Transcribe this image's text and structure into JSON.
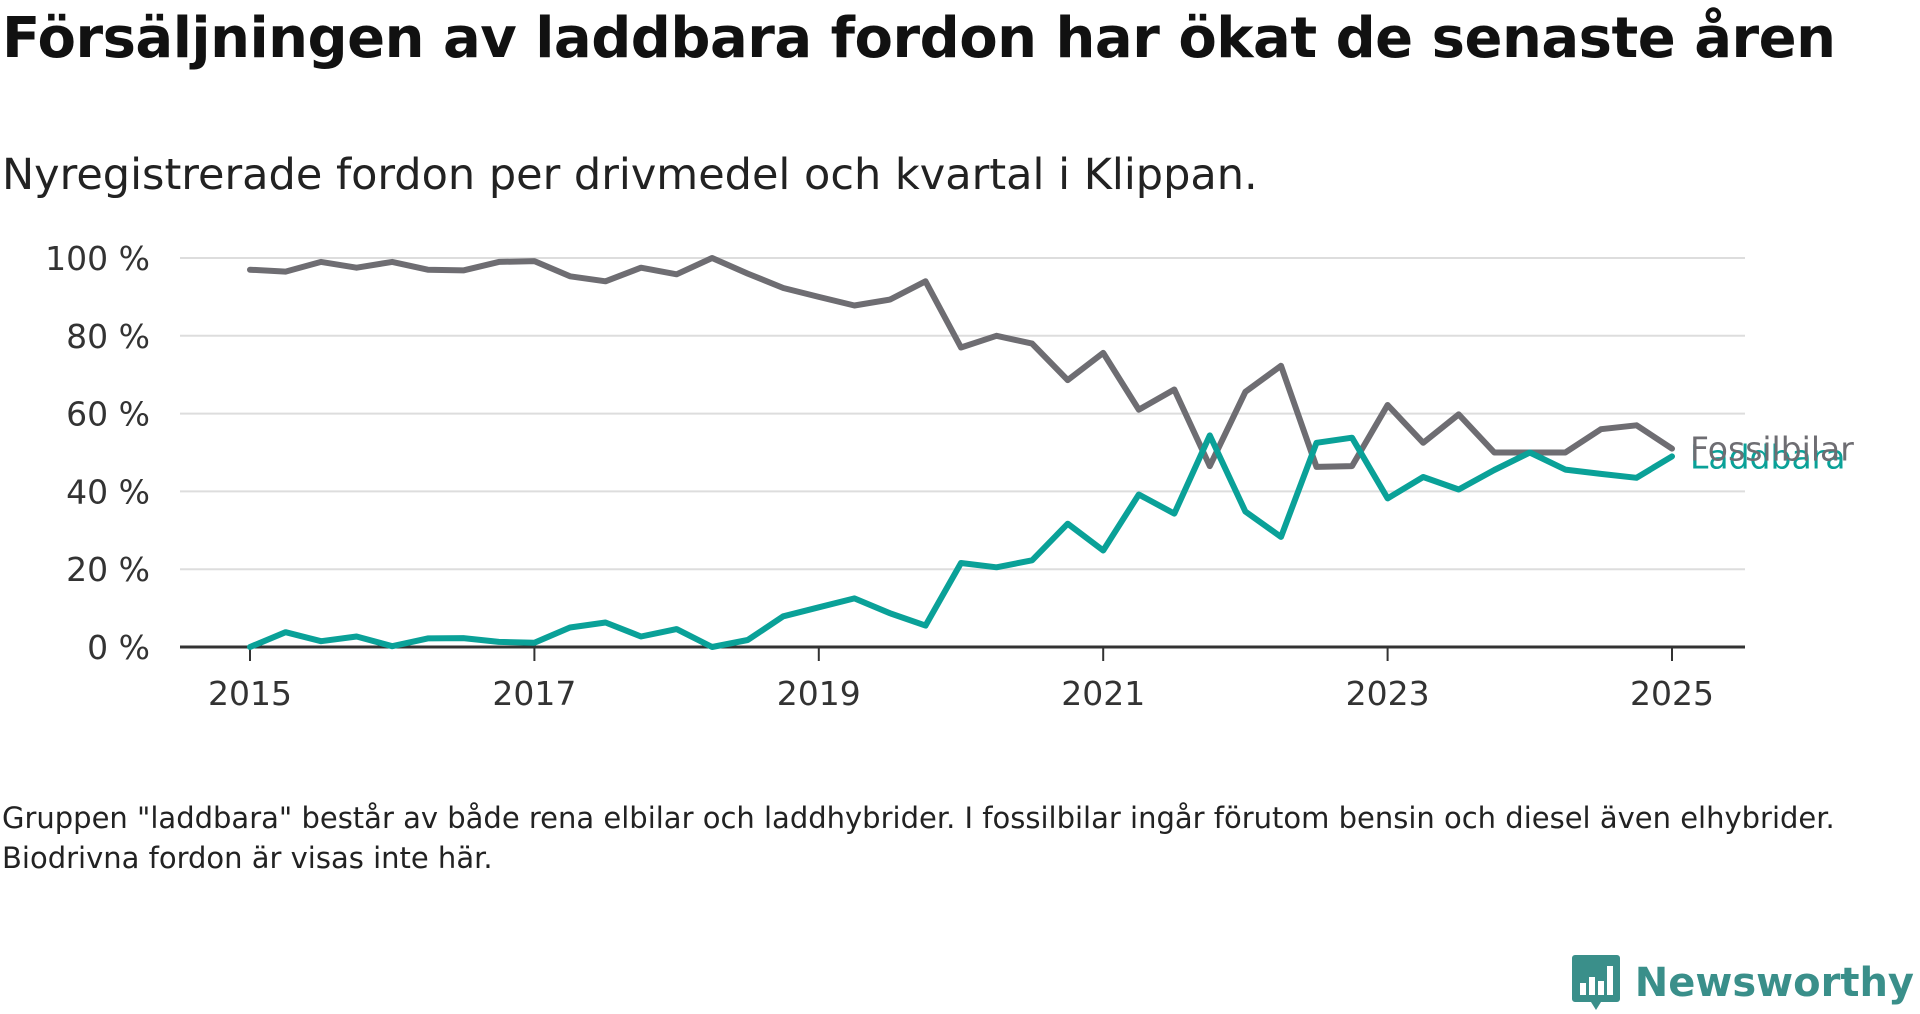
{
  "title": "Försäljningen av laddbara fordon har ökat de senaste åren",
  "subtitle": "Nyregistrerade fordon per drivmedel och kvartal i Klippan.",
  "footnote": "Gruppen \"laddbara\" består av både rena elbilar och laddhybrider. I fossilbilar ingår förutom bensin och diesel även elhybrider. Biodrivna fordon är visas inte här.",
  "brand": {
    "name": "Newsworthy",
    "icon": "newsworthy-logo-icon",
    "color": "#3a8f8a"
  },
  "chart_data": {
    "type": "line",
    "x": [
      "2015 Q1",
      "2015 Q2",
      "2015 Q3",
      "2015 Q4",
      "2016 Q1",
      "2016 Q2",
      "2016 Q3",
      "2016 Q4",
      "2017 Q1",
      "2017 Q2",
      "2017 Q3",
      "2017 Q4",
      "2018 Q1",
      "2018 Q2",
      "2018 Q3",
      "2018 Q4",
      "2019 Q1",
      "2019 Q2",
      "2019 Q3",
      "2019 Q4",
      "2020 Q1",
      "2020 Q2",
      "2020 Q3",
      "2020 Q4",
      "2021 Q1",
      "2021 Q2",
      "2021 Q3",
      "2021 Q4",
      "2022 Q1",
      "2022 Q2",
      "2022 Q3",
      "2022 Q4",
      "2023 Q1",
      "2023 Q2",
      "2023 Q3",
      "2023 Q4",
      "2024 Q1",
      "2024 Q2",
      "2024 Q3",
      "2024 Q4",
      "2025 Q1"
    ],
    "xticks": [
      "2015",
      "2017",
      "2019",
      "2021",
      "2023",
      "2025"
    ],
    "yticks": [
      0,
      20,
      40,
      60,
      80,
      100
    ],
    "ytick_suffix": " %",
    "ylim": [
      0,
      100
    ],
    "grid": true,
    "series": [
      {
        "name": "Fossilbilar",
        "color": "#6e6d72",
        "values": [
          97,
          96.5,
          99,
          97.5,
          99,
          97,
          96.8,
          99,
          99.2,
          95.3,
          94,
          97.5,
          95.8,
          100,
          96,
          92.3,
          90,
          87.8,
          89.3,
          94,
          77,
          80,
          78,
          68.6,
          75.6,
          61,
          66.2,
          46.5,
          65.6,
          72.3,
          46.3,
          46.5,
          62.2,
          52.5,
          59.8,
          50,
          50,
          50,
          56,
          57,
          51
        ]
      },
      {
        "name": "Laddbara",
        "color": "#0aa198",
        "values": [
          0,
          3.8,
          1.5,
          2.7,
          0.2,
          2.2,
          2.3,
          1.3,
          1.1,
          5,
          6.3,
          2.7,
          4.6,
          0,
          1.8,
          7.9,
          10.2,
          12.5,
          8.7,
          5.5,
          21.6,
          20.5,
          22.3,
          31.7,
          24.8,
          39.2,
          34.3,
          54.4,
          34.8,
          28.3,
          52.5,
          53.8,
          38.2,
          43.7,
          40.5,
          45.5,
          50,
          45.6,
          44.5,
          43.5,
          49
        ]
      }
    ]
  }
}
